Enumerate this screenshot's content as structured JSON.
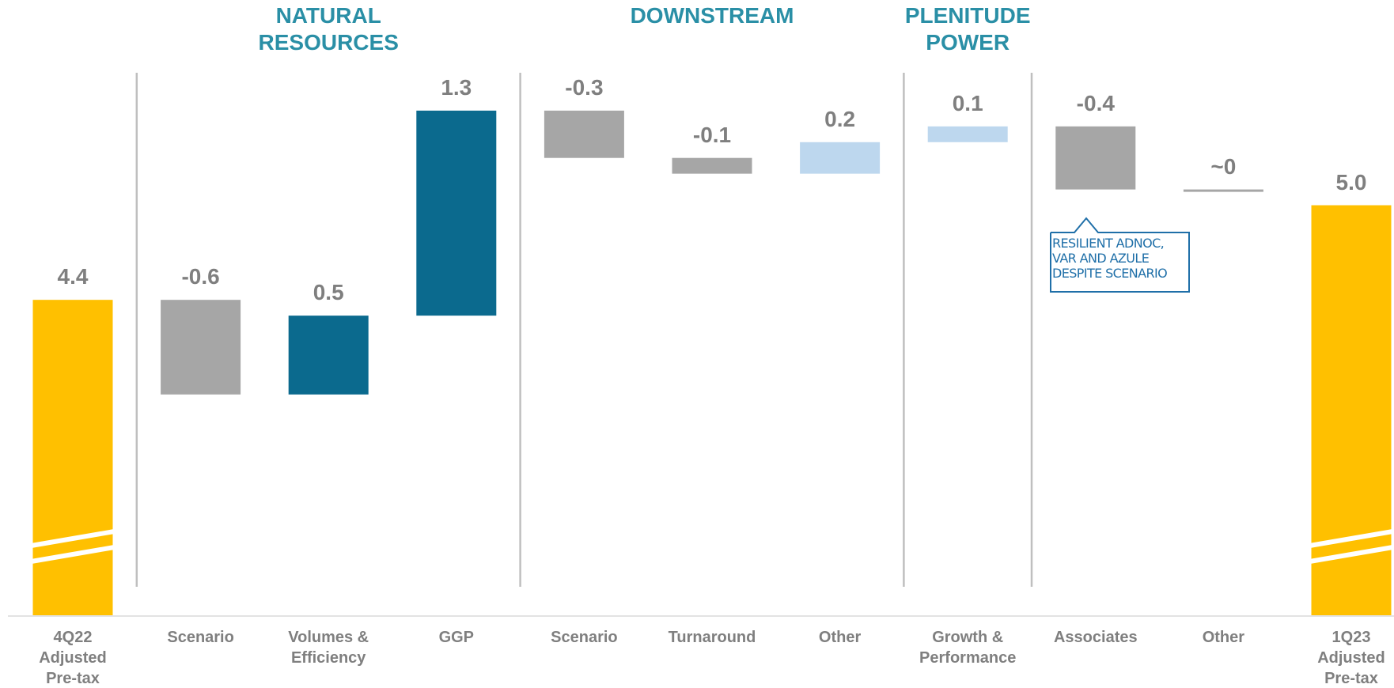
{
  "chart_data": {
    "type": "waterfall",
    "categories": [
      "4Q22\nAdjusted\nPre-tax",
      "Scenario",
      "Volumes &\nEfficiency",
      "GGP",
      "Scenario",
      "Turnaround",
      "Other",
      "Growth &\nPerformance",
      "Associates",
      "Other",
      "1Q23\nAdjusted\nPre-tax"
    ],
    "values": [
      4.4,
      -0.6,
      0.5,
      1.3,
      -0.3,
      -0.1,
      0.2,
      0.1,
      -0.4,
      0,
      5.0
    ],
    "value_labels": [
      "4.4",
      "-0.6",
      "0.5",
      "1.3",
      "-0.3",
      "-0.1",
      "0.2",
      "0.1",
      "-0.4",
      "~0",
      "5.0"
    ],
    "is_total": [
      true,
      false,
      false,
      false,
      false,
      false,
      false,
      false,
      false,
      false,
      true
    ],
    "colors": [
      "#FFC000",
      "#A6A6A6",
      "#0B6A8E",
      "#0B6A8E",
      "#A6A6A6",
      "#A6A6A6",
      "#BDD7EE",
      "#BDD7EE",
      "#A6A6A6",
      "#A6A6A6",
      "#FFC000"
    ],
    "groups": [
      {
        "name": "NATURAL\nRESOURCES",
        "start": 1,
        "end": 3
      },
      {
        "name": "DOWNSTREAM",
        "start": 4,
        "end": 6
      },
      {
        "name": "PLENITUDE\nPOWER",
        "start": 7,
        "end": 7
      }
    ],
    "annotation": "RESILIENT ADNOC,\nVAR AND AZULE\nDESPITE SCENARIO",
    "ylim": [
      2.4,
      5.8
    ],
    "broken_axis": true
  }
}
